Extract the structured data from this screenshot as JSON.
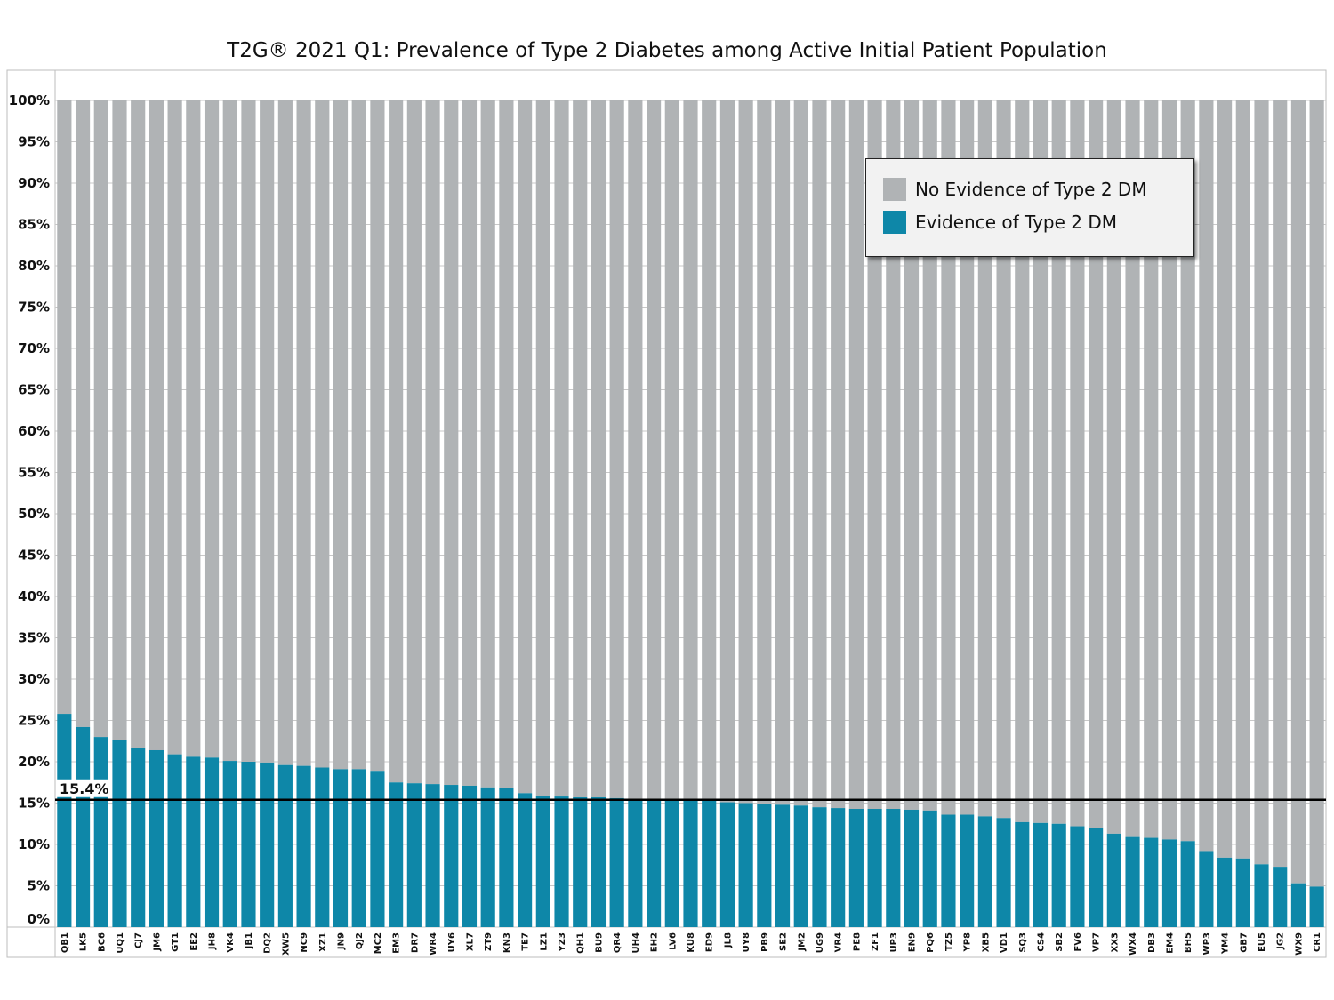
{
  "chart_data": {
    "type": "bar",
    "stacked": true,
    "title": "T2G® 2021 Q1: Prevalence of Type 2 Diabetes among Active Initial Patient Population",
    "xlabel": "",
    "ylabel": "",
    "ylim": [
      0,
      100
    ],
    "y_tick_labels": [
      "0%",
      "5%",
      "10%",
      "15%",
      "20%",
      "25%",
      "30%",
      "35%",
      "40%",
      "45%",
      "50%",
      "55%",
      "60%",
      "65%",
      "70%",
      "75%",
      "80%",
      "85%",
      "90%",
      "95%",
      "100%"
    ],
    "grid": true,
    "legend_position": "top-right",
    "categories": [
      "QB1",
      "LK5",
      "BC6",
      "UQ1",
      "CJ7",
      "JM6",
      "GT1",
      "EE2",
      "JH8",
      "VK4",
      "JB1",
      "DQ2",
      "XW5",
      "NC9",
      "XZ1",
      "JN9",
      "QJ2",
      "MC2",
      "EM3",
      "DR7",
      "WR4",
      "UY6",
      "XL7",
      "ZT9",
      "KN3",
      "TE7",
      "LZ1",
      "YZ3",
      "QH1",
      "BU9",
      "QR4",
      "UH4",
      "EH2",
      "LV6",
      "KU8",
      "ED9",
      "JL8",
      "UY8",
      "PB9",
      "SE2",
      "JM2",
      "UG9",
      "VR4",
      "PE8",
      "ZF1",
      "UP3",
      "EN9",
      "PQ6",
      "TZ5",
      "YP8",
      "XB5",
      "VD1",
      "SQ3",
      "CS4",
      "SB2",
      "FV6",
      "VP7",
      "XX3",
      "WX4",
      "DB3",
      "EM4",
      "BH5",
      "WP3",
      "YM4",
      "GB7",
      "EU5",
      "JG2",
      "WX9",
      "CR1"
    ],
    "series": [
      {
        "name": "Evidence of Type 2 DM",
        "color": "#0e87a8",
        "values": [
          25.8,
          24.2,
          23.0,
          22.6,
          21.7,
          21.4,
          20.9,
          20.6,
          20.5,
          20.1,
          20.0,
          19.9,
          19.6,
          19.5,
          19.3,
          19.1,
          19.1,
          18.9,
          17.5,
          17.4,
          17.3,
          17.2,
          17.1,
          16.9,
          16.8,
          16.2,
          15.9,
          15.8,
          15.7,
          15.7,
          15.6,
          15.5,
          15.4,
          15.4,
          15.3,
          15.3,
          15.1,
          15.0,
          14.9,
          14.8,
          14.7,
          14.5,
          14.4,
          14.3,
          14.3,
          14.3,
          14.2,
          14.1,
          13.6,
          13.6,
          13.4,
          13.2,
          12.7,
          12.6,
          12.5,
          12.2,
          12.0,
          11.3,
          10.9,
          10.8,
          10.6,
          10.4,
          9.2,
          8.4,
          8.3,
          7.6,
          7.3,
          5.3,
          4.9
        ]
      },
      {
        "name": "No Evidence of Type 2 DM",
        "color": "#b0b3b5",
        "fill_to": 100
      }
    ],
    "reference_line": {
      "value": 15.4,
      "label": "15.4%"
    }
  }
}
